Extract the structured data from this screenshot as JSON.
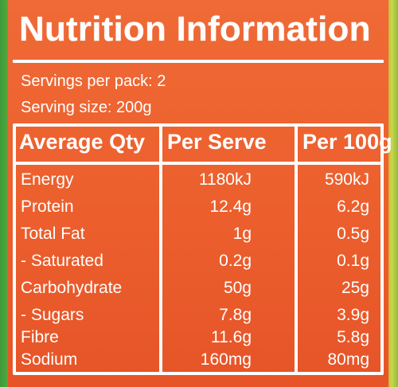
{
  "label": {
    "title": "Nutrition Information",
    "servings_per_pack": "Servings per pack: 2",
    "serving_size": "Serving size: 200g"
  },
  "table": {
    "headers": [
      "Average Qty",
      "Per Serve",
      "Per 100g"
    ],
    "rows": [
      {
        "name": "Energy",
        "per_serve": "1180kJ",
        "per_100g": "590kJ"
      },
      {
        "name": "Protein",
        "per_serve": "12.4g",
        "per_100g": "6.2g"
      },
      {
        "name": "Total Fat",
        "per_serve": "1g",
        "per_100g": "0.5g"
      },
      {
        "name": "- Saturated",
        "per_serve": "0.2g",
        "per_100g": "0.1g"
      },
      {
        "name": "Carbohydrate",
        "per_serve": "50g",
        "per_100g": "25g"
      },
      {
        "name": "- Sugars",
        "per_serve": "7.8g",
        "per_100g": "3.9g"
      },
      {
        "name": "Fibre",
        "per_serve": "11.6g",
        "per_100g": "5.8g"
      },
      {
        "name": "Sodium",
        "per_serve": "160mg",
        "per_100g": "80mg"
      }
    ]
  },
  "colors": {
    "label_background": "#ec5f2d",
    "text": "#ffffff",
    "package_green": "#56ad3c"
  }
}
